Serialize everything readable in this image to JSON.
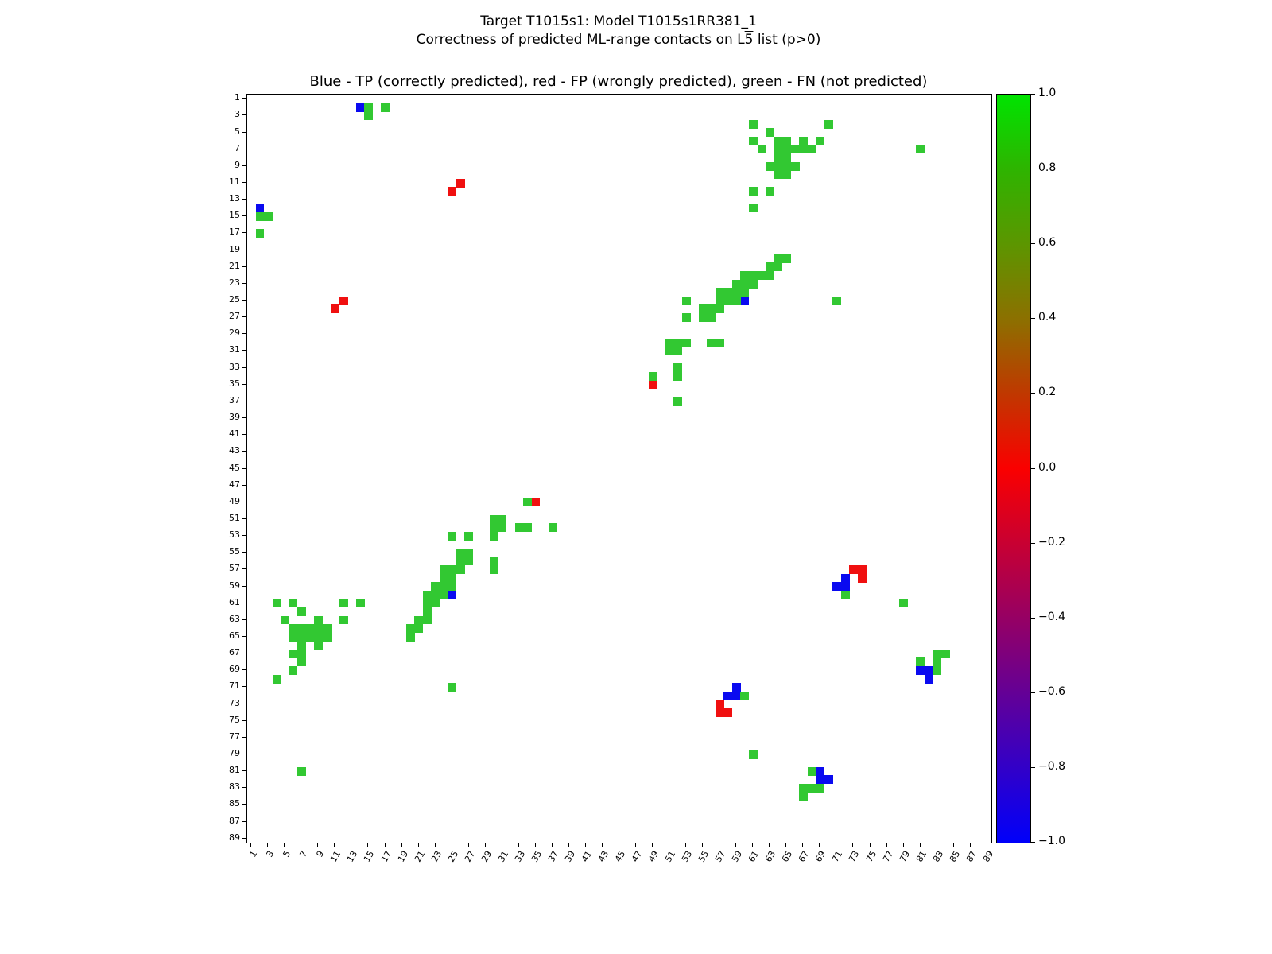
{
  "figure": {
    "title_line1": "Target T1015s1: Model T1015s1RR381_1",
    "title_line2_prefix": "Correctness of predicted ML-range contacts on L",
    "title_line2_overline": "5",
    "title_line2_suffix": " list (p>0)",
    "axes_title": "Blue - TP (correctly predicted), red - FP (wrongly predicted), green - FN (not predicted)"
  },
  "chart_data": {
    "type": "heatmap",
    "title": "Target T1015s1: Model T1015s1RR381_1",
    "subtitle": "Correctness of predicted ML-range contacts on L5 list (p>0)",
    "axes_title": "Blue - TP (correctly predicted), red - FP (wrongly predicted), green - FN (not predicted)",
    "n_residues": 89,
    "symmetric": true,
    "x_tick_labels": [
      "1",
      "3",
      "5",
      "7",
      "9",
      "11",
      "13",
      "15",
      "17",
      "19",
      "21",
      "23",
      "25",
      "27",
      "29",
      "31",
      "33",
      "35",
      "37",
      "39",
      "41",
      "43",
      "45",
      "47",
      "49",
      "51",
      "53",
      "55",
      "57",
      "59",
      "61",
      "63",
      "65",
      "67",
      "69",
      "71",
      "73",
      "75",
      "77",
      "79",
      "81",
      "83",
      "85",
      "87",
      "89"
    ],
    "y_tick_labels": [
      "1",
      "3",
      "5",
      "7",
      "9",
      "11",
      "13",
      "15",
      "17",
      "19",
      "21",
      "23",
      "25",
      "27",
      "29",
      "31",
      "33",
      "35",
      "37",
      "39",
      "41",
      "43",
      "45",
      "47",
      "49",
      "51",
      "53",
      "55",
      "57",
      "59",
      "61",
      "63",
      "65",
      "67",
      "69",
      "71",
      "73",
      "75",
      "77",
      "79",
      "81",
      "83",
      "85",
      "87",
      "89"
    ],
    "colors": {
      "TP": "#0a0af0",
      "FP": "#f01010",
      "FN": "#32c832"
    },
    "legend": {
      "TP": "correctly predicted (blue)",
      "FP": "wrongly predicted (red)",
      "FN": "not predicted (green)"
    },
    "contacts": [
      [
        2,
        14,
        "TP"
      ],
      [
        25,
        60,
        "TP"
      ],
      [
        58,
        72,
        "TP"
      ],
      [
        59,
        71,
        "TP"
      ],
      [
        59,
        72,
        "TP"
      ],
      [
        69,
        81,
        "TP"
      ],
      [
        69,
        82,
        "TP"
      ],
      [
        70,
        82,
        "TP"
      ],
      [
        11,
        26,
        "FP"
      ],
      [
        12,
        25,
        "FP"
      ],
      [
        35,
        49,
        "FP"
      ],
      [
        57,
        73,
        "FP"
      ],
      [
        57,
        74,
        "FP"
      ],
      [
        58,
        74,
        "FP"
      ],
      [
        2,
        15,
        "FN"
      ],
      [
        3,
        15,
        "FN"
      ],
      [
        2,
        17,
        "FN"
      ],
      [
        4,
        61,
        "FN"
      ],
      [
        4,
        70,
        "FN"
      ],
      [
        5,
        63,
        "FN"
      ],
      [
        6,
        61,
        "FN"
      ],
      [
        6,
        64,
        "FN"
      ],
      [
        6,
        65,
        "FN"
      ],
      [
        6,
        67,
        "FN"
      ],
      [
        6,
        69,
        "FN"
      ],
      [
        7,
        62,
        "FN"
      ],
      [
        7,
        64,
        "FN"
      ],
      [
        7,
        65,
        "FN"
      ],
      [
        7,
        66,
        "FN"
      ],
      [
        7,
        67,
        "FN"
      ],
      [
        7,
        68,
        "FN"
      ],
      [
        7,
        81,
        "FN"
      ],
      [
        8,
        64,
        "FN"
      ],
      [
        8,
        65,
        "FN"
      ],
      [
        9,
        63,
        "FN"
      ],
      [
        9,
        64,
        "FN"
      ],
      [
        9,
        65,
        "FN"
      ],
      [
        9,
        66,
        "FN"
      ],
      [
        10,
        64,
        "FN"
      ],
      [
        10,
        65,
        "FN"
      ],
      [
        12,
        61,
        "FN"
      ],
      [
        12,
        63,
        "FN"
      ],
      [
        14,
        61,
        "FN"
      ],
      [
        20,
        64,
        "FN"
      ],
      [
        20,
        65,
        "FN"
      ],
      [
        21,
        63,
        "FN"
      ],
      [
        21,
        64,
        "FN"
      ],
      [
        22,
        60,
        "FN"
      ],
      [
        22,
        61,
        "FN"
      ],
      [
        22,
        62,
        "FN"
      ],
      [
        22,
        63,
        "FN"
      ],
      [
        23,
        59,
        "FN"
      ],
      [
        23,
        60,
        "FN"
      ],
      [
        23,
        61,
        "FN"
      ],
      [
        24,
        57,
        "FN"
      ],
      [
        24,
        58,
        "FN"
      ],
      [
        24,
        59,
        "FN"
      ],
      [
        24,
        60,
        "FN"
      ],
      [
        25,
        53,
        "FN"
      ],
      [
        25,
        57,
        "FN"
      ],
      [
        25,
        58,
        "FN"
      ],
      [
        25,
        59,
        "FN"
      ],
      [
        25,
        71,
        "FN"
      ],
      [
        26,
        55,
        "FN"
      ],
      [
        26,
        56,
        "FN"
      ],
      [
        26,
        57,
        "FN"
      ],
      [
        27,
        53,
        "FN"
      ],
      [
        27,
        55,
        "FN"
      ],
      [
        27,
        56,
        "FN"
      ],
      [
        30,
        51,
        "FN"
      ],
      [
        30,
        52,
        "FN"
      ],
      [
        30,
        53,
        "FN"
      ],
      [
        30,
        56,
        "FN"
      ],
      [
        30,
        57,
        "FN"
      ],
      [
        31,
        51,
        "FN"
      ],
      [
        31,
        52,
        "FN"
      ],
      [
        33,
        52,
        "FN"
      ],
      [
        34,
        49,
        "FN"
      ],
      [
        34,
        52,
        "FN"
      ],
      [
        37,
        52,
        "FN"
      ],
      [
        60,
        72,
        "FN"
      ],
      [
        61,
        79,
        "FN"
      ],
      [
        67,
        83,
        "FN"
      ],
      [
        67,
        84,
        "FN"
      ],
      [
        68,
        81,
        "FN"
      ],
      [
        68,
        83,
        "FN"
      ],
      [
        69,
        83,
        "FN"
      ]
    ],
    "colorbar": {
      "min": -1.0,
      "max": 1.0,
      "tick_labels": [
        "1.0",
        "0.8",
        "0.6",
        "0.4",
        "0.2",
        "0.0",
        "−0.2",
        "−0.4",
        "−0.6",
        "−0.8",
        "−1.0"
      ],
      "gradient_stops": [
        "#00e400",
        "#2eb400",
        "#5c9600",
        "#8c7000",
        "#c03800",
        "#fa0000",
        "#c80032",
        "#960064",
        "#640096",
        "#3200c8",
        "#0000fa"
      ]
    }
  }
}
